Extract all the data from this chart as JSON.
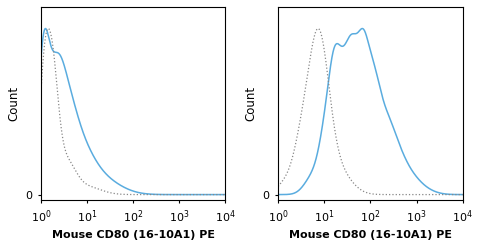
{
  "panel_xlabel": "Mouse CD80 (16-10A1) PE",
  "panel_ylabel": "Count",
  "blue_color": "#5aacdf",
  "dotted_color": "#888888",
  "bg_color": "#ffffff",
  "label_fontsize": 8.0,
  "ylabel_fontsize": 8.5,
  "xlabel_fontsize": 8.0
}
